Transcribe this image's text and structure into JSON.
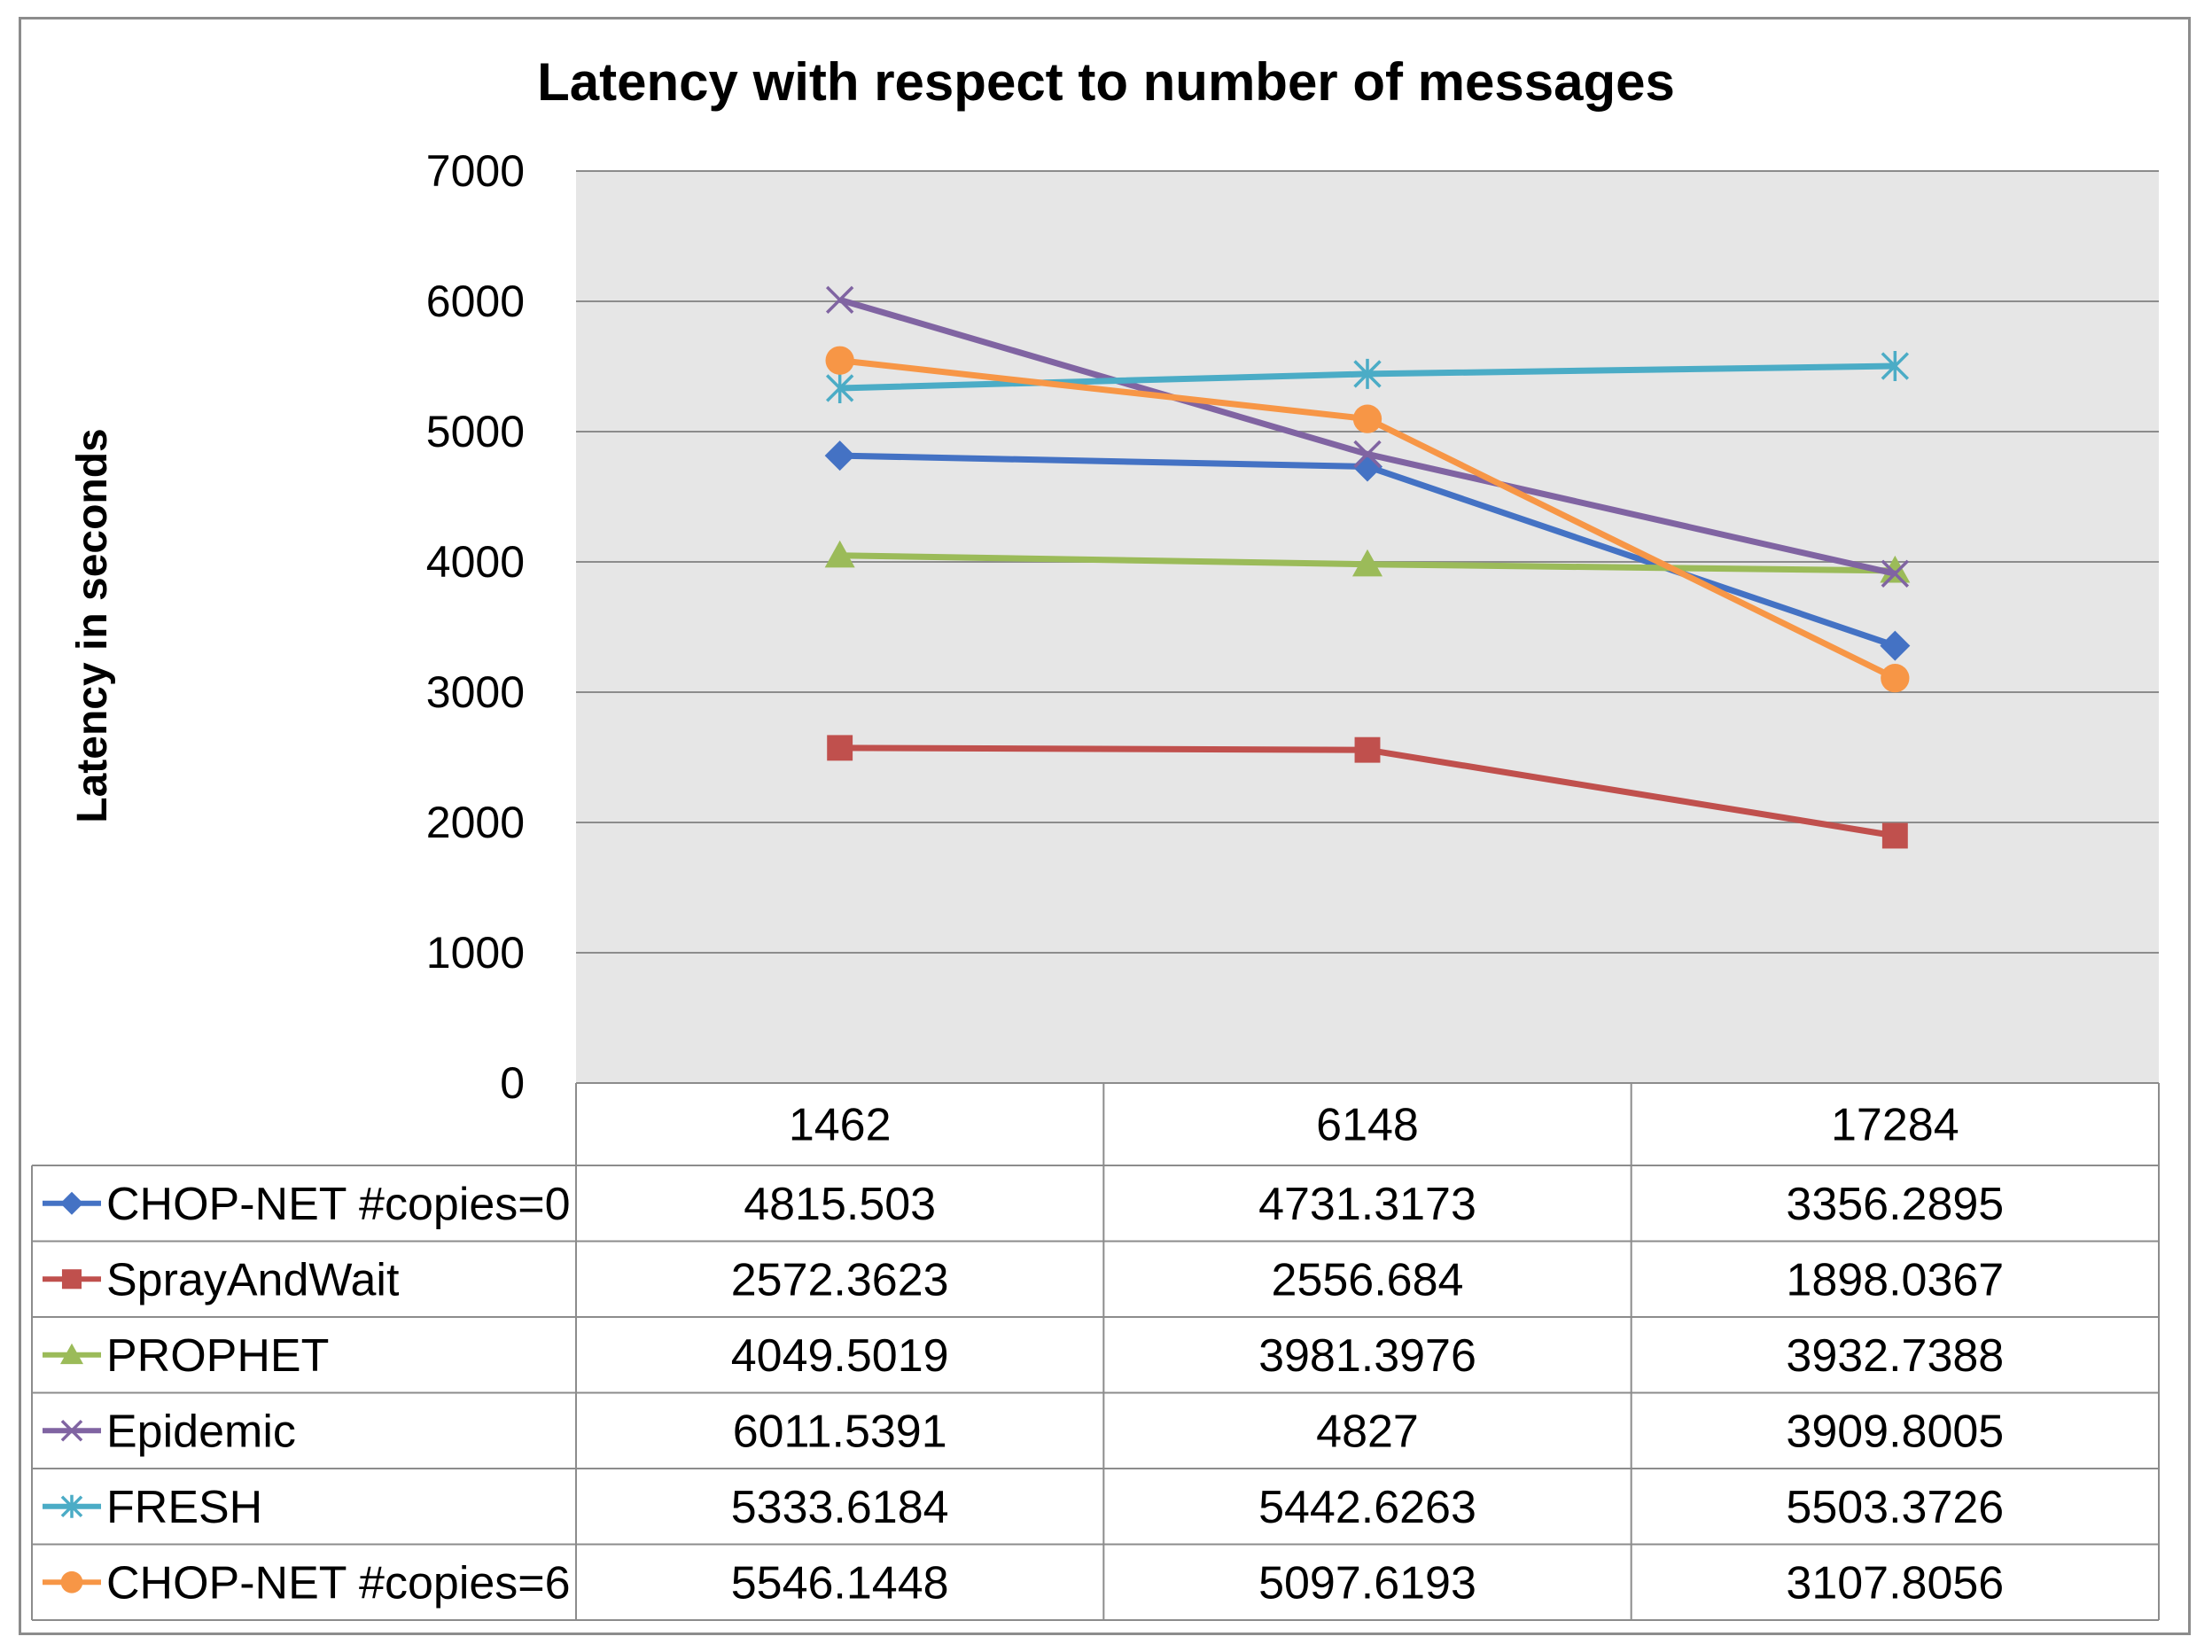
{
  "chart_data": {
    "type": "line",
    "title": "Latency with respect to number of messages",
    "xlabel": "",
    "ylabel": "Latency in seconds",
    "ylim": [
      0,
      7000
    ],
    "yticks": [
      "0",
      "1000",
      "2000",
      "3000",
      "4000",
      "5000",
      "6000",
      "7000"
    ],
    "categories": [
      "1462",
      "6148",
      "17284"
    ],
    "grid": true,
    "legend_placement": "data-table-left",
    "series": [
      {
        "name": "CHOP-NET #copies=0",
        "color": "#4472c4",
        "marker": "diamond",
        "values": [
          4815.503,
          4731.3173,
          3356.2895
        ],
        "labels": [
          "4815.503",
          "4731.3173",
          "3356.2895"
        ]
      },
      {
        "name": "SprayAndWait",
        "color": "#c0504d",
        "marker": "square",
        "values": [
          2572.3623,
          2556.684,
          1898.0367
        ],
        "labels": [
          "2572.3623",
          "2556.684",
          "1898.0367"
        ]
      },
      {
        "name": "PROPHET",
        "color": "#9bbb59",
        "marker": "triangle",
        "values": [
          4049.5019,
          3981.3976,
          3932.7388
        ],
        "labels": [
          "4049.5019",
          "3981.3976",
          "3932.7388"
        ]
      },
      {
        "name": "Epidemic",
        "color": "#8064a2",
        "marker": "x",
        "values": [
          6011.5391,
          4827,
          3909.8005
        ],
        "labels": [
          "6011.5391",
          "4827",
          "3909.8005"
        ]
      },
      {
        "name": "FRESH",
        "color": "#4bacc6",
        "marker": "star",
        "values": [
          5333.6184,
          5442.6263,
          5503.3726
        ],
        "labels": [
          "5333.6184",
          "5442.6263",
          "5503.3726"
        ]
      },
      {
        "name": "CHOP-NET #copies=6",
        "color": "#f79646",
        "marker": "circle",
        "values": [
          5546.1448,
          5097.6193,
          3107.8056
        ],
        "labels": [
          "5546.1448",
          "5097.6193",
          "3107.8056"
        ]
      }
    ]
  }
}
